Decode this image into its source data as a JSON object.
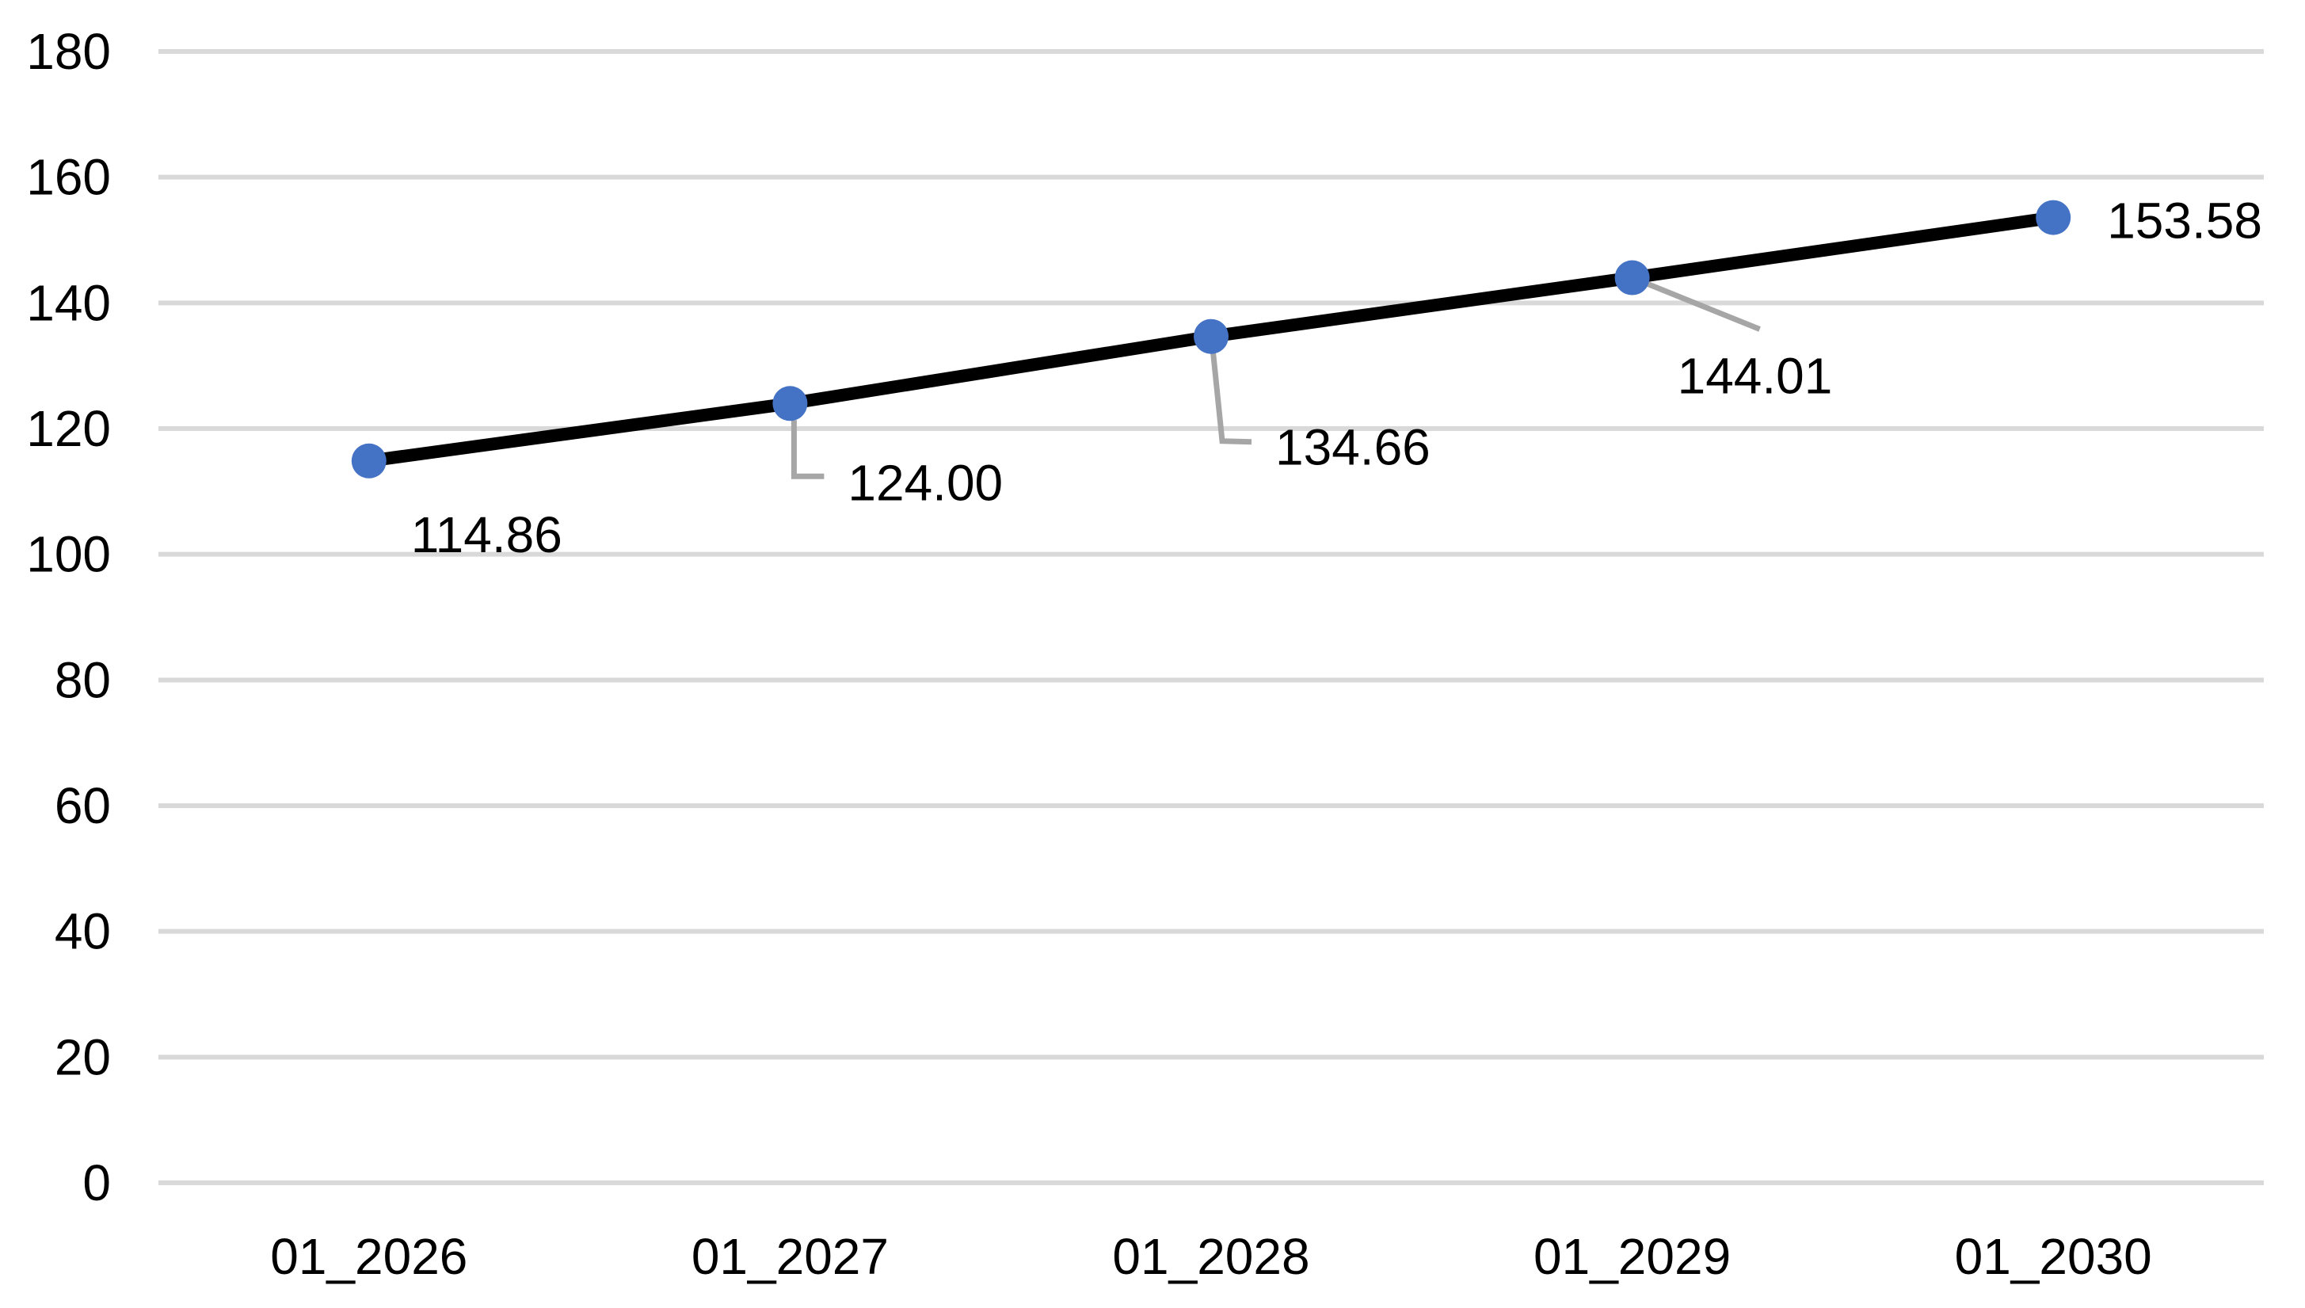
{
  "chart_data": {
    "type": "line",
    "categories": [
      "01_2026",
      "01_2027",
      "01_2028",
      "01_2029",
      "01_2030"
    ],
    "values": [
      114.86,
      124.0,
      134.66,
      144.01,
      153.58
    ],
    "data_labels": [
      "114.86",
      "124.00",
      "134.66",
      "144.01",
      "153.58"
    ],
    "data_label_positions": [
      "below-right",
      "below-elbow-leader",
      "below-elbow-leader",
      "below-diagonal-leader",
      "right"
    ],
    "title": "",
    "xlabel": "",
    "ylabel": "",
    "ylim": [
      0,
      180
    ],
    "y_ticks": [
      0,
      20,
      40,
      60,
      80,
      100,
      120,
      140,
      160,
      180
    ],
    "y_tick_labels": [
      "0",
      "20",
      "40",
      "60",
      "80",
      "100",
      "120",
      "140",
      "160",
      "180"
    ],
    "grid": "horizontal",
    "legend": "none",
    "marker_shape": "circle",
    "colors": {
      "line": "#000000",
      "marker": "#4472C4",
      "gridline": "#D9D9D9",
      "leader_line": "#A6A6A6",
      "text": "#000000",
      "background": "#FFFFFF"
    }
  }
}
